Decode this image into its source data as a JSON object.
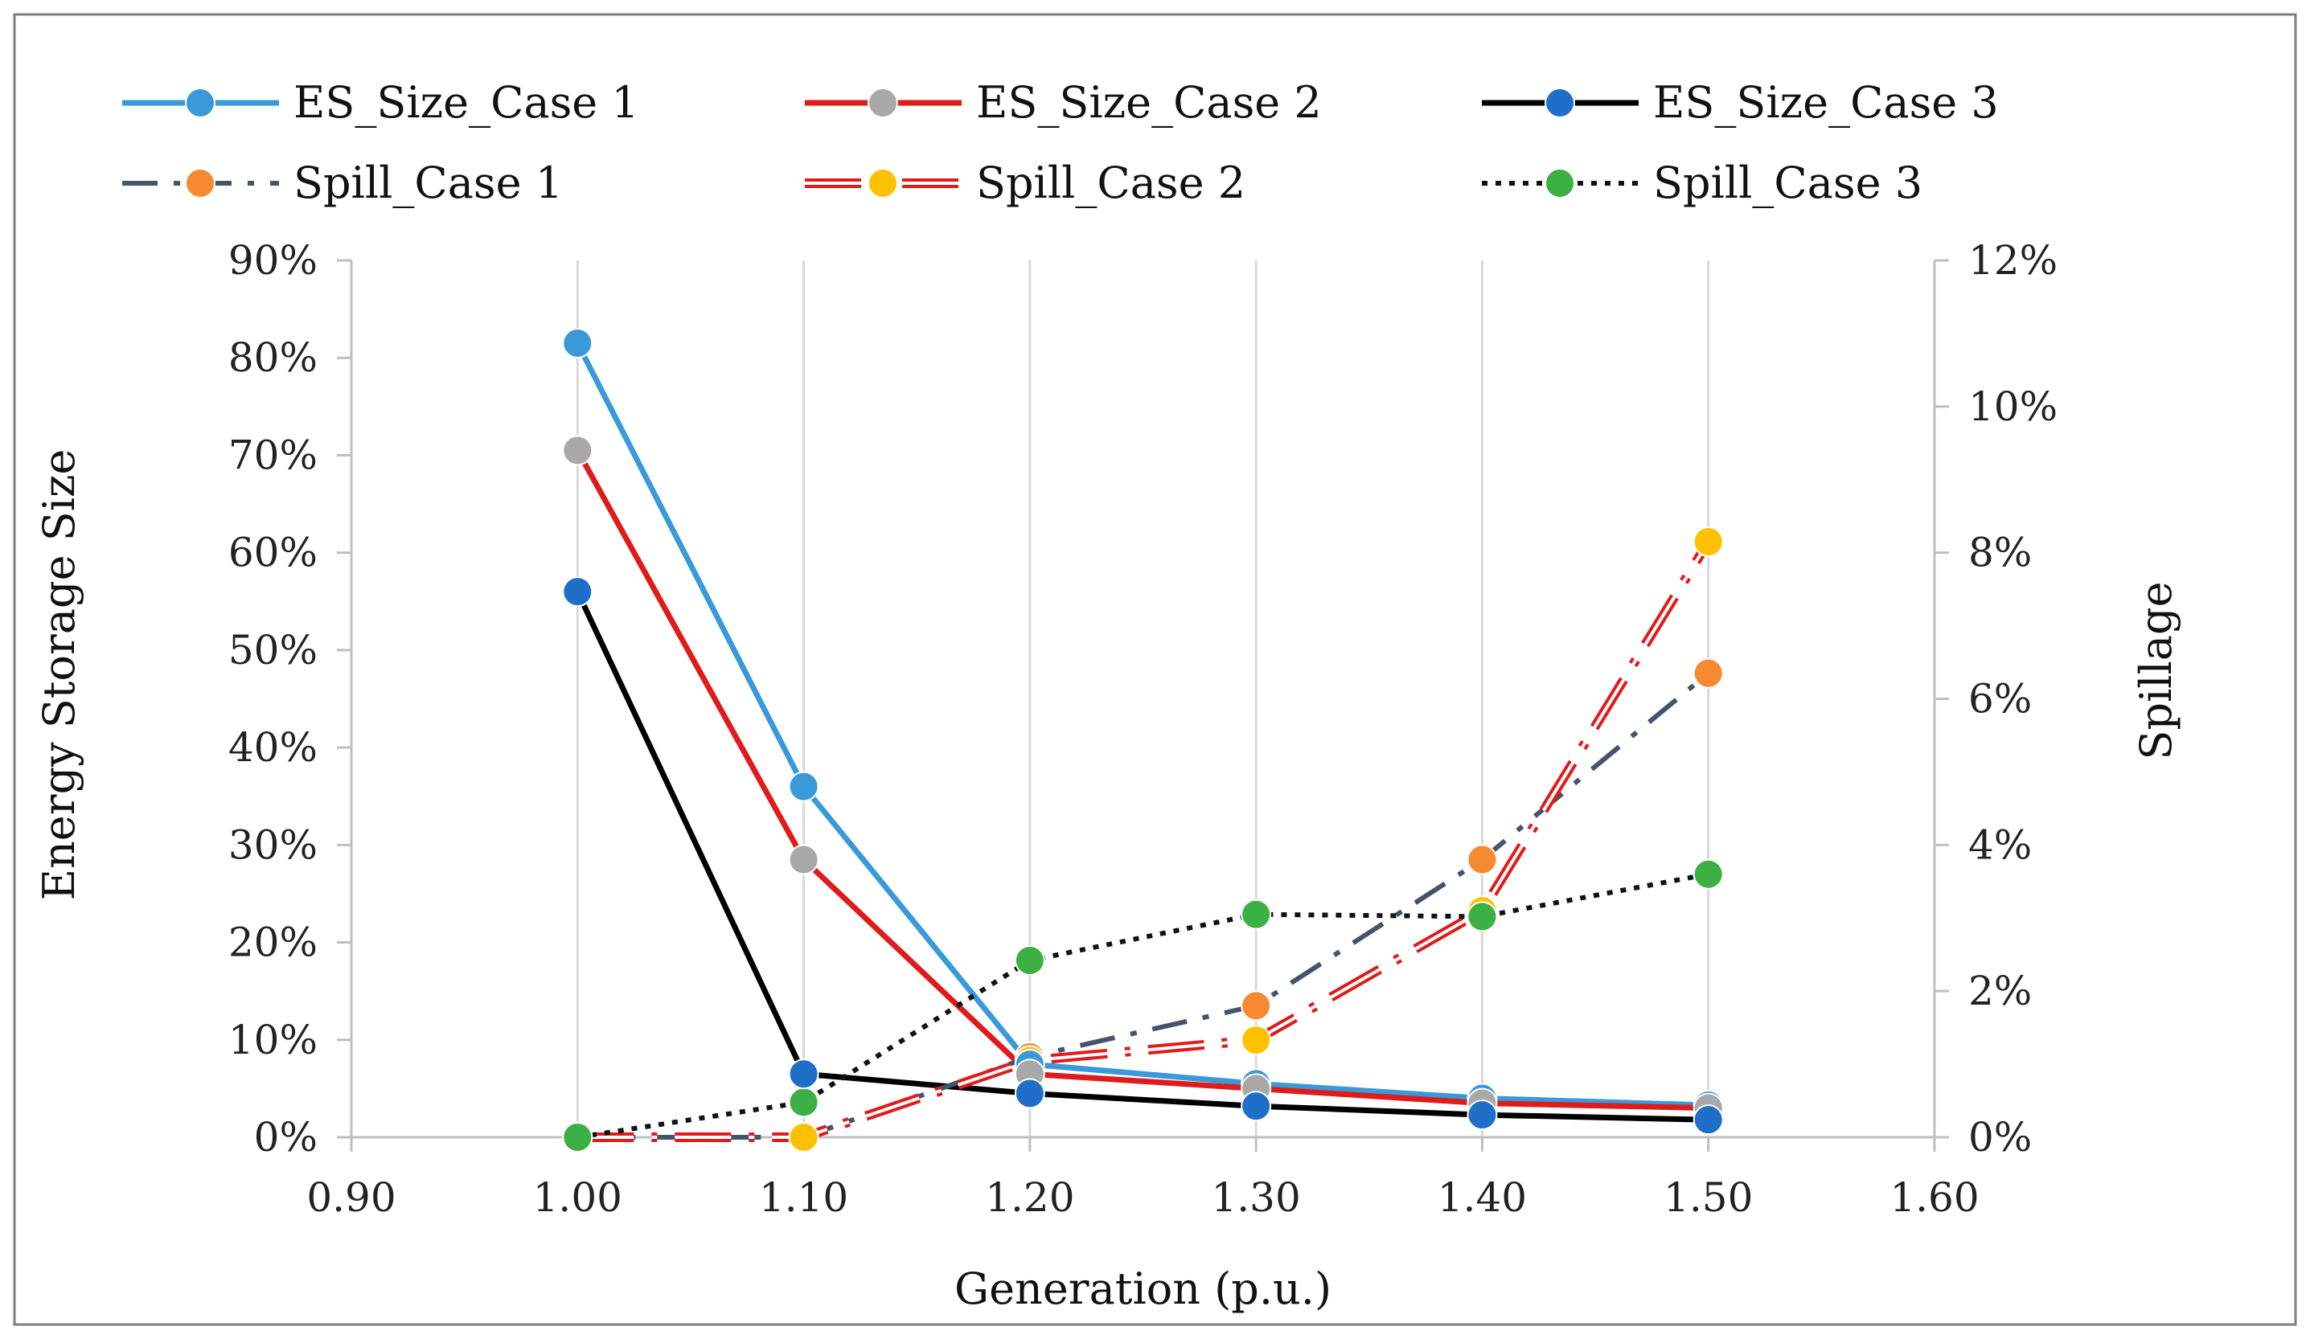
{
  "chart_data": {
    "type": "line",
    "title": "",
    "xlabel": "Generation (p.u.)",
    "ylabel": "Energy Storage Size",
    "y2label": "Spillage",
    "xlim": [
      0.9,
      1.6
    ],
    "ylim": [
      0,
      90
    ],
    "y2lim": [
      0,
      12
    ],
    "x_ticks": [
      "0.90",
      "1.00",
      "1.10",
      "1.20",
      "1.30",
      "1.40",
      "1.50",
      "1.60"
    ],
    "y_ticks": [
      "0%",
      "10%",
      "20%",
      "30%",
      "40%",
      "50%",
      "60%",
      "70%",
      "80%",
      "90%"
    ],
    "y2_ticks": [
      "0%",
      "2%",
      "4%",
      "6%",
      "8%",
      "10%",
      "12%"
    ],
    "grid": "vertical",
    "legend_position": "top",
    "series": [
      {
        "name": "ES_Size_Case 1",
        "axis": "left",
        "x": [
          1.0,
          1.1,
          1.2,
          1.3,
          1.4,
          1.5
        ],
        "values": [
          81.5,
          36.0,
          7.5,
          5.5,
          4.0,
          3.3
        ],
        "line_color": "#3a9ad9",
        "marker_color": "#3a9ad9",
        "style": "solid"
      },
      {
        "name": "ES_Size_Case 2",
        "axis": "left",
        "x": [
          1.0,
          1.1,
          1.2,
          1.3,
          1.4,
          1.5
        ],
        "values": [
          70.5,
          28.5,
          6.5,
          5.0,
          3.5,
          3.0
        ],
        "line_color": "#e01b1b",
        "marker_color": "#a8a8a8",
        "style": "solid"
      },
      {
        "name": "ES_Size_Case 3",
        "axis": "left",
        "x": [
          1.0,
          1.1,
          1.2,
          1.3,
          1.4,
          1.5
        ],
        "values": [
          56.0,
          6.5,
          4.5,
          3.2,
          2.3,
          1.8
        ],
        "line_color": "#000000",
        "marker_color": "#1f6fc9",
        "style": "solid"
      },
      {
        "name": "Spill_Case 1",
        "axis": "right",
        "x": [
          1.0,
          1.1,
          1.2,
          1.3,
          1.4,
          1.5
        ],
        "values": [
          0.0,
          0.0,
          1.1,
          1.8,
          3.8,
          6.35
        ],
        "line_color": "#44546a",
        "marker_color": "#f58a30",
        "style": "dashdot"
      },
      {
        "name": "Spill_Case 2",
        "axis": "right",
        "x": [
          1.0,
          1.1,
          1.2,
          1.3,
          1.4,
          1.5
        ],
        "values": [
          0.0,
          0.0,
          1.05,
          1.33,
          3.1,
          8.15
        ],
        "line_color": "#e01b1b",
        "marker_color": "#ffc000",
        "style": "double"
      },
      {
        "name": "Spill_Case 3",
        "axis": "right",
        "x": [
          1.0,
          1.1,
          1.2,
          1.3,
          1.4,
          1.5
        ],
        "values": [
          0.0,
          0.48,
          2.42,
          3.05,
          3.02,
          3.6
        ],
        "line_color": "#111111",
        "marker_color": "#3cb043",
        "style": "dotted"
      }
    ]
  }
}
